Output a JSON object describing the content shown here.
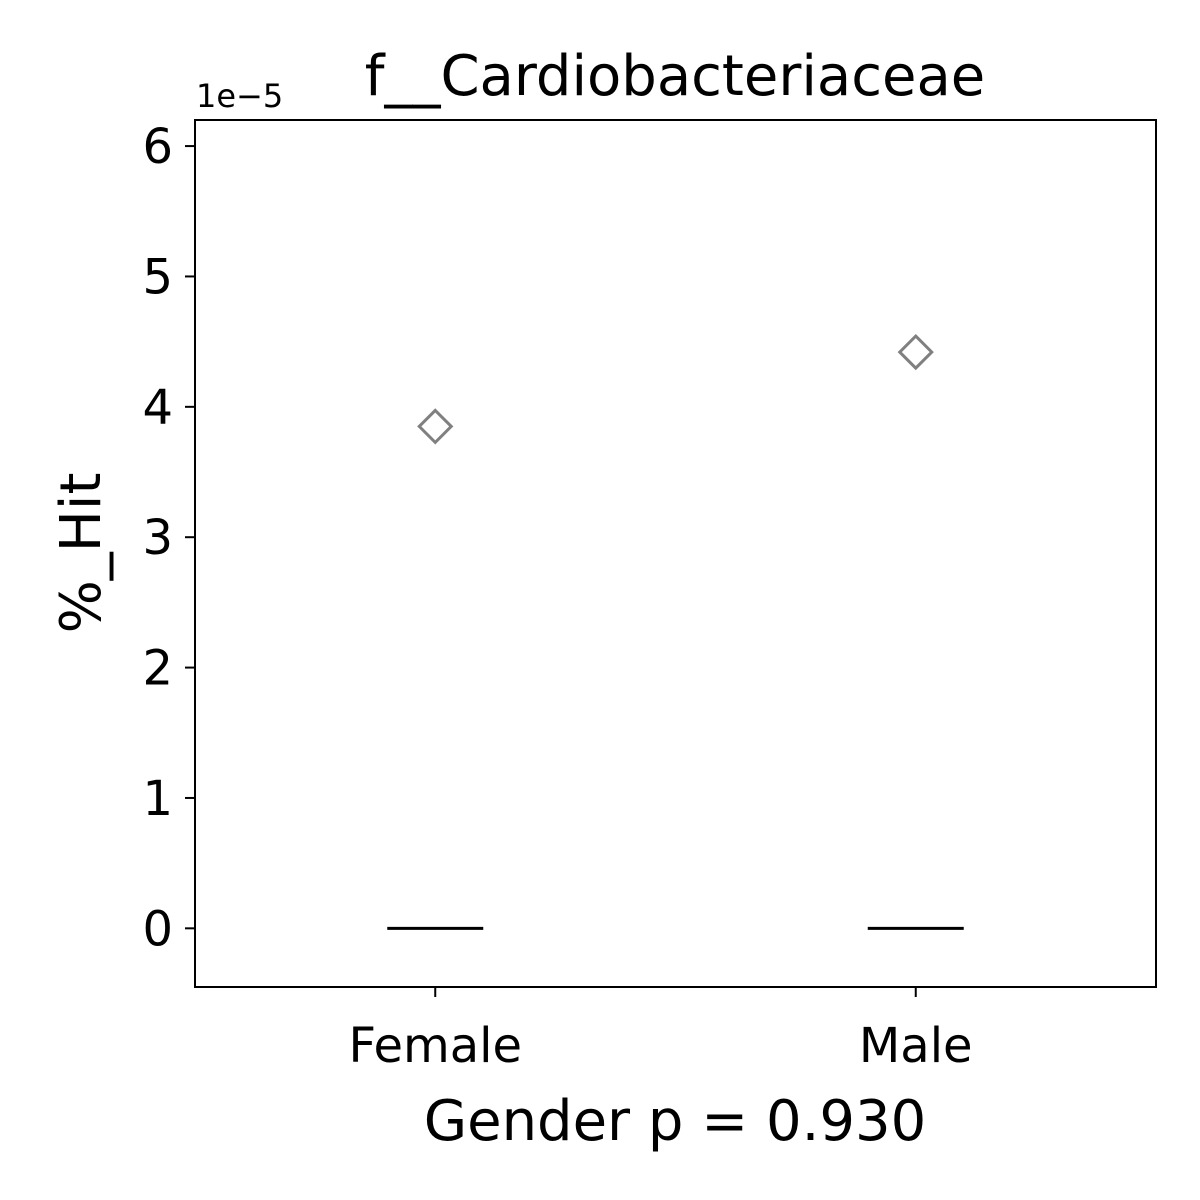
{
  "chart_data": {
    "type": "box",
    "title": "f__Cardiobacteriaceae",
    "offset_text": "1e−5",
    "xlabel": "Gender p = 0.930",
    "ylabel": "%_Hit",
    "categories": [
      "Female",
      "Male"
    ],
    "y_scale_factor": 1e-05,
    "ylim": [
      -0.45,
      6.2
    ],
    "yticks": [
      0,
      1,
      2,
      3,
      4,
      5,
      6
    ],
    "ytick_labels": [
      "0",
      "1",
      "2",
      "3",
      "4",
      "5",
      "6"
    ],
    "boxes": [
      {
        "category": "Female",
        "median": 0,
        "q1": 0,
        "q3": 0,
        "whisker_low": 0,
        "whisker_high": 0,
        "outliers": [
          3.85
        ]
      },
      {
        "category": "Male",
        "median": 0,
        "q1": 0,
        "q3": 0,
        "whisker_low": 0,
        "whisker_high": 0,
        "outliers": [
          4.42
        ]
      }
    ],
    "grid": false,
    "colors": {
      "median": "#000000",
      "outlier": "#808080",
      "axes": "#000000"
    }
  }
}
